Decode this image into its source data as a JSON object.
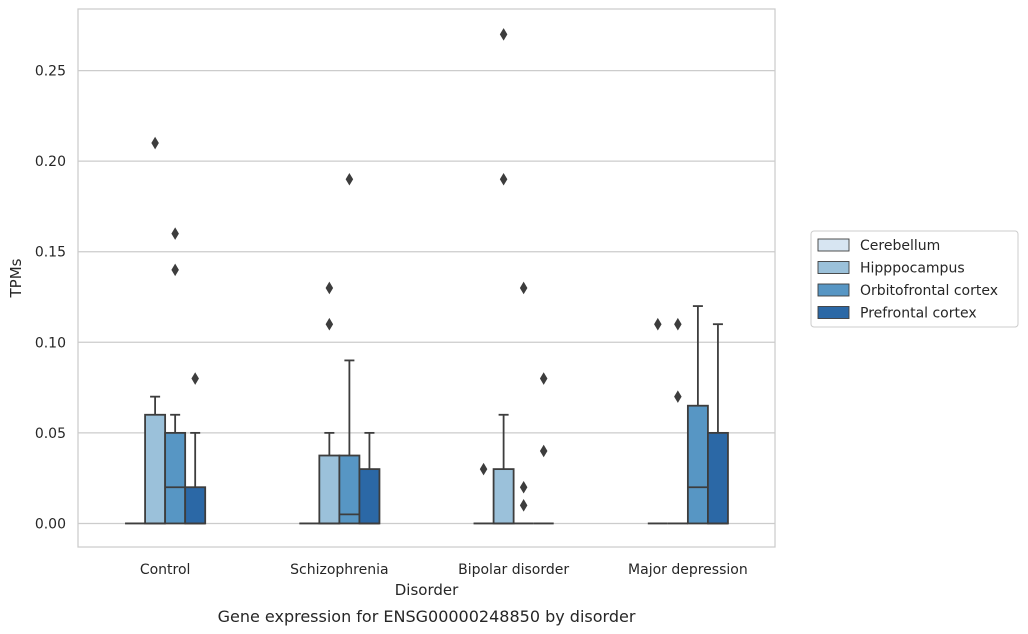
{
  "chart_data": {
    "type": "box",
    "title": "",
    "caption": "Gene expression for ENSG00000248850 by disorder",
    "xlabel": "Disorder",
    "ylabel": "TPMs",
    "ylim": [
      -0.013,
      0.284
    ],
    "yticks": [
      0.0,
      0.05,
      0.1,
      0.15,
      0.2,
      0.25
    ],
    "ytick_labels": [
      "0.00",
      "0.05",
      "0.10",
      "0.15",
      "0.20",
      "0.25"
    ],
    "grid": "horizontal",
    "legend_position": "right",
    "categories": [
      "Control",
      "Schizophrenia",
      "Bipolar disorder",
      "Major depression"
    ],
    "series": [
      {
        "name": "Cerebellum",
        "color": "#d7e5f2",
        "boxes": [
          {
            "q1": 0.0,
            "median": 0.0,
            "q3": 0.0,
            "whisker_low": 0.0,
            "whisker_high": 0.0,
            "outliers": []
          },
          {
            "q1": 0.0,
            "median": 0.0,
            "q3": 0.0,
            "whisker_low": 0.0,
            "whisker_high": 0.0,
            "outliers": []
          },
          {
            "q1": 0.0,
            "median": 0.0,
            "q3": 0.0,
            "whisker_low": 0.0,
            "whisker_high": 0.0,
            "outliers": [
              0.03
            ]
          },
          {
            "q1": 0.0,
            "median": 0.0,
            "q3": 0.0,
            "whisker_low": 0.0,
            "whisker_high": 0.0,
            "outliers": [
              0.11
            ]
          }
        ]
      },
      {
        "name": "Hipppocampus",
        "color": "#9bc1da",
        "boxes": [
          {
            "q1": 0.0,
            "median": 0.0,
            "q3": 0.06,
            "whisker_low": 0.0,
            "whisker_high": 0.07,
            "outliers": [
              0.21
            ]
          },
          {
            "q1": 0.0,
            "median": 0.0,
            "q3": 0.0375,
            "whisker_low": 0.0,
            "whisker_high": 0.05,
            "outliers": [
              0.11,
              0.13
            ]
          },
          {
            "q1": 0.0,
            "median": 0.0,
            "q3": 0.03,
            "whisker_low": 0.0,
            "whisker_high": 0.06,
            "outliers": [
              0.19,
              0.27
            ]
          },
          {
            "q1": 0.0,
            "median": 0.0,
            "q3": 0.0,
            "whisker_low": 0.0,
            "whisker_high": 0.0,
            "outliers": [
              0.07,
              0.11
            ]
          }
        ]
      },
      {
        "name": "Orbitofrontal cortex",
        "color": "#5796c4",
        "boxes": [
          {
            "q1": 0.0,
            "median": 0.02,
            "q3": 0.05,
            "whisker_low": 0.0,
            "whisker_high": 0.06,
            "outliers": [
              0.14,
              0.16
            ]
          },
          {
            "q1": 0.0,
            "median": 0.005,
            "q3": 0.0375,
            "whisker_low": 0.0,
            "whisker_high": 0.09,
            "outliers": [
              0.19
            ]
          },
          {
            "q1": 0.0,
            "median": 0.0,
            "q3": 0.0,
            "whisker_low": 0.0,
            "whisker_high": 0.0,
            "outliers": [
              0.01,
              0.02,
              0.13
            ]
          },
          {
            "q1": 0.0,
            "median": 0.02,
            "q3": 0.065,
            "whisker_low": 0.0,
            "whisker_high": 0.12,
            "outliers": []
          }
        ]
      },
      {
        "name": "Prefrontal cortex",
        "color": "#2b68a6",
        "boxes": [
          {
            "q1": 0.0,
            "median": 0.0,
            "q3": 0.02,
            "whisker_low": 0.0,
            "whisker_high": 0.05,
            "outliers": [
              0.08
            ]
          },
          {
            "q1": 0.0,
            "median": 0.0,
            "q3": 0.03,
            "whisker_low": 0.0,
            "whisker_high": 0.05,
            "outliers": []
          },
          {
            "q1": 0.0,
            "median": 0.0,
            "q3": 0.0,
            "whisker_low": 0.0,
            "whisker_high": 0.0,
            "outliers": [
              0.04,
              0.08
            ]
          },
          {
            "q1": 0.0,
            "median": 0.0,
            "q3": 0.05,
            "whisker_low": 0.0,
            "whisker_high": 0.11,
            "outliers": []
          }
        ]
      }
    ]
  }
}
